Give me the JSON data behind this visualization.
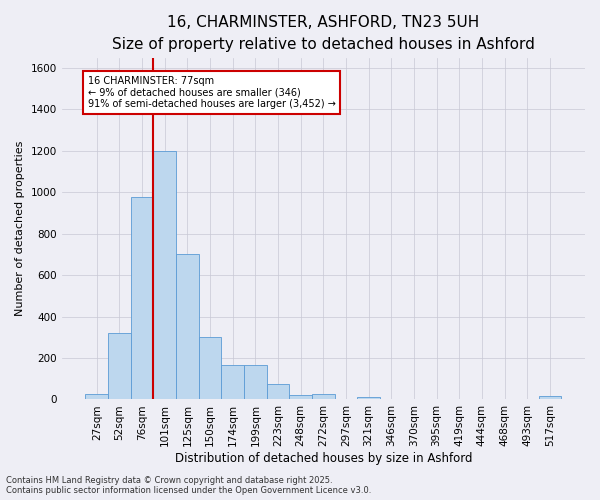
{
  "title": "16, CHARMINSTER, ASHFORD, TN23 5UH",
  "subtitle": "Size of property relative to detached houses in Ashford",
  "xlabel": "Distribution of detached houses by size in Ashford",
  "ylabel": "Number of detached properties",
  "categories": [
    "27sqm",
    "52sqm",
    "76sqm",
    "101sqm",
    "125sqm",
    "150sqm",
    "174sqm",
    "199sqm",
    "223sqm",
    "248sqm",
    "272sqm",
    "297sqm",
    "321sqm",
    "346sqm",
    "370sqm",
    "395sqm",
    "419sqm",
    "444sqm",
    "468sqm",
    "493sqm",
    "517sqm"
  ],
  "values": [
    25,
    320,
    975,
    1200,
    700,
    300,
    165,
    165,
    75,
    20,
    25,
    0,
    10,
    0,
    0,
    0,
    0,
    0,
    0,
    0,
    15
  ],
  "bar_color": "#bdd7ee",
  "bar_edge_color": "#5b9bd5",
  "grid_color": "#c8c8d4",
  "background_color": "#eeeef5",
  "vline_x_idx": 2,
  "annotation_text": "16 CHARMINSTER: 77sqm\n← 9% of detached houses are smaller (346)\n91% of semi-detached houses are larger (3,452) →",
  "annotation_box_color": "#ffffff",
  "annotation_box_edge": "#cc0000",
  "ylim": [
    0,
    1650
  ],
  "yticks": [
    0,
    200,
    400,
    600,
    800,
    1000,
    1200,
    1400,
    1600
  ],
  "footer": "Contains HM Land Registry data © Crown copyright and database right 2025.\nContains public sector information licensed under the Open Government Licence v3.0.",
  "title_fontsize": 11,
  "subtitle_fontsize": 9.5,
  "xlabel_fontsize": 8.5,
  "ylabel_fontsize": 8,
  "tick_fontsize": 7.5
}
